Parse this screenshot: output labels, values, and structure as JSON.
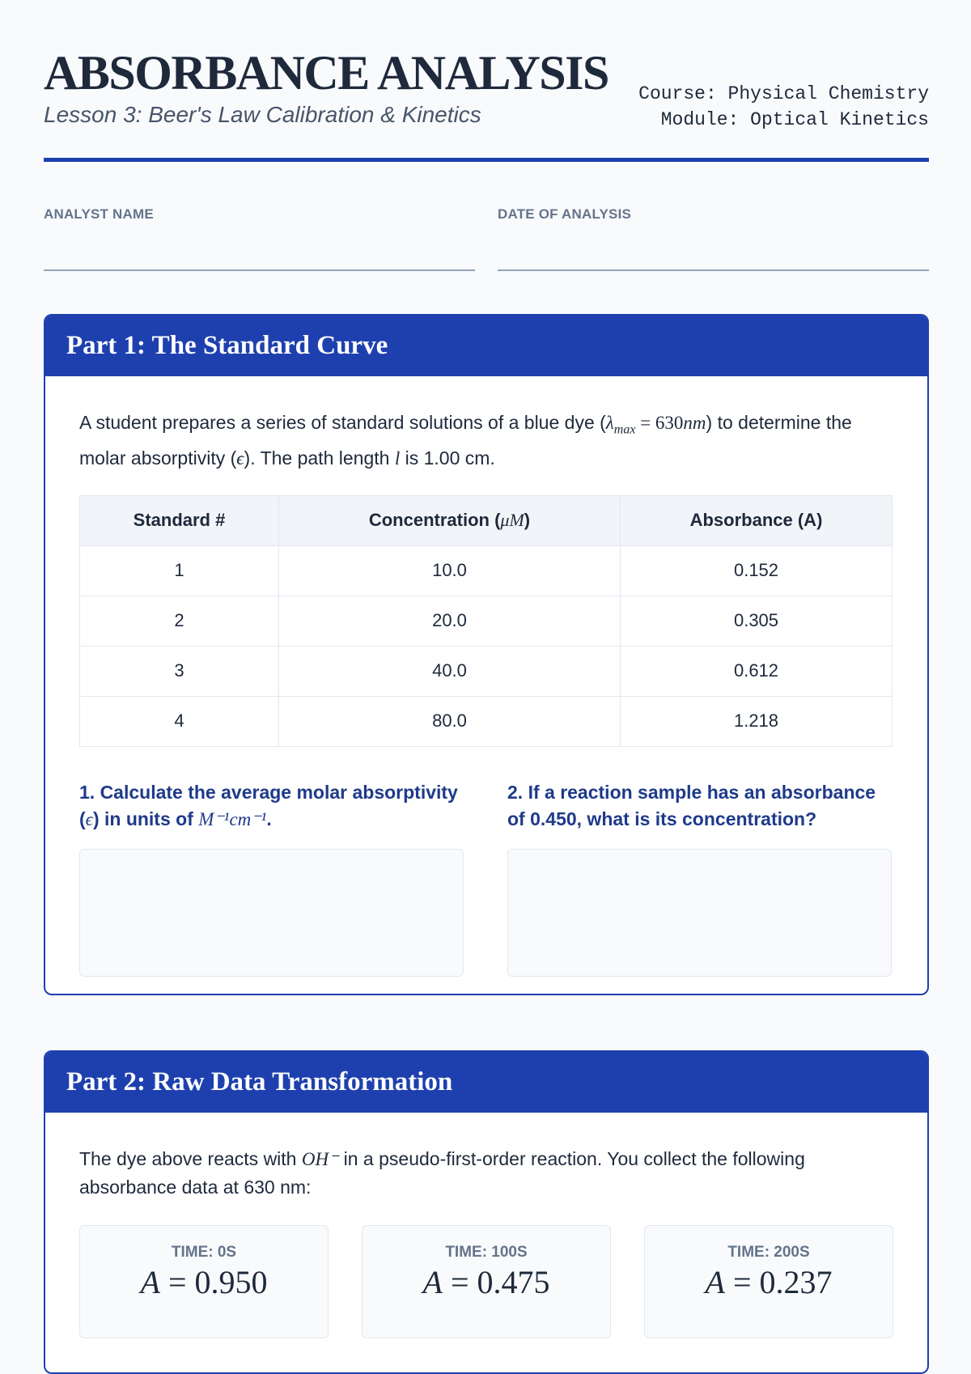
{
  "header": {
    "title": "ABSORBANCE ANALYSIS",
    "subtitle": "Lesson 3: Beer's Law Calibration & Kinetics",
    "course": "Course: Physical Chemistry",
    "module": "Module: Optical Kinetics"
  },
  "fields": [
    {
      "label": "ANALYST NAME"
    },
    {
      "label": "DATE OF ANALYSIS"
    }
  ],
  "part1": {
    "title": "Part 1: The Standard Curve",
    "intro_a": "A student prepares a series of standard solutions of a blue dye (",
    "lambda": "λ",
    "lambda_sub": "max",
    "eq": " = 630",
    "nm": "nm",
    "intro_b": ") to determine the molar absorptivity (",
    "eps": "ϵ",
    "intro_c": "). The path length ",
    "l": "l",
    "intro_d": " is 1.00 cm.",
    "table": {
      "headers": [
        "Standard #",
        "Concentration (",
        "Absorbance (A)"
      ],
      "conc_unit": "μM",
      "conc_close": ")",
      "rows": [
        [
          "1",
          "10.0",
          "0.152"
        ],
        [
          "2",
          "20.0",
          "0.305"
        ],
        [
          "3",
          "40.0",
          "0.612"
        ],
        [
          "4",
          "80.0",
          "1.218"
        ]
      ]
    },
    "q1_a": "1. Calculate the average molar absorptivity (",
    "q1_eps": "ϵ",
    "q1_b": ") in units of ",
    "q1_unit": "M⁻¹cm⁻¹",
    "q1_c": ".",
    "q2": "2. If a reaction sample has an absorbance of 0.450, what is its concentration?"
  },
  "part2": {
    "title": "Part 2: Raw Data Transformation",
    "intro_a": "The dye above reacts with ",
    "oh": "OH⁻",
    "intro_b": " in a pseudo-first-order reaction. You collect the following absorbance data at 630 nm:",
    "times": [
      {
        "label": "TIME: 0S",
        "value": "0.950"
      },
      {
        "label": "TIME: 100S",
        "value": "0.475"
      },
      {
        "label": "TIME: 200S",
        "value": "0.237"
      }
    ]
  }
}
